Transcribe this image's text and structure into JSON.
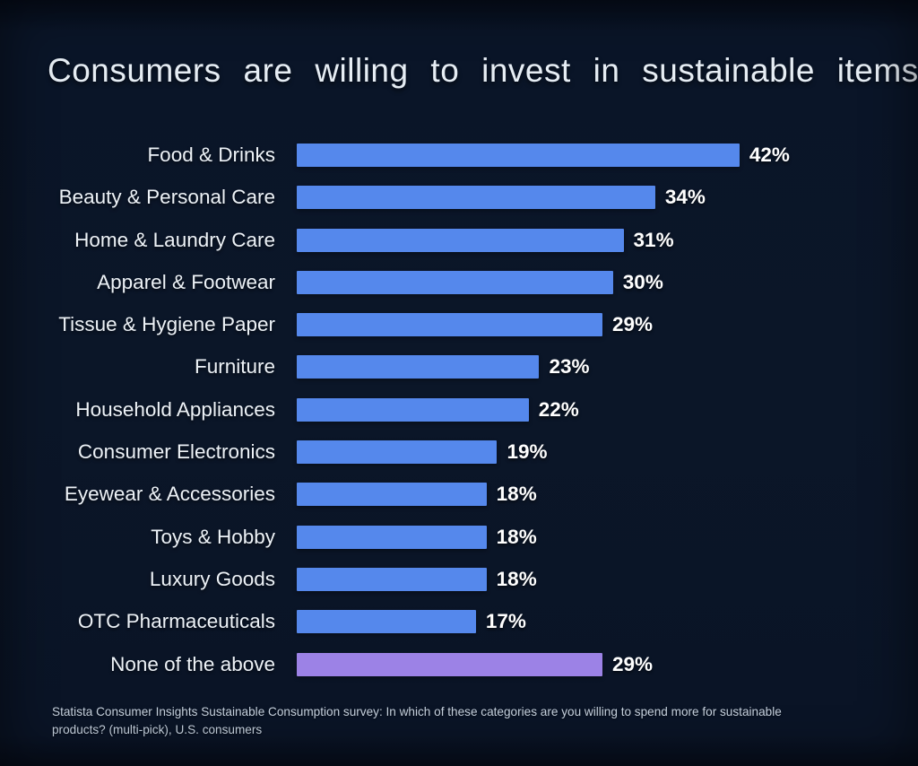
{
  "page": {
    "title": "Consumers are willing to invest in sustainable items"
  },
  "chart_data": {
    "type": "bar",
    "orientation": "horizontal",
    "title": "Consumers are willing to invest in sustainable items",
    "categories": [
      "Food & Drinks",
      "Beauty & Personal Care",
      "Home & Laundry Care",
      "Apparel & Footwear",
      "Tissue & Hygiene Paper",
      "Furniture",
      "Household Appliances",
      "Consumer Electronics",
      "Eyewear & Accessories",
      "Toys & Hobby",
      "Luxury Goods",
      "OTC Pharmaceuticals",
      "None of the above"
    ],
    "values": [
      42,
      34,
      31,
      30,
      29,
      23,
      22,
      19,
      18,
      18,
      18,
      17,
      29
    ],
    "value_suffix": "%",
    "xlim": [
      0,
      45
    ],
    "grid": false,
    "legend": "none",
    "bar_color": "#5588ec",
    "highlight_color": "#9c82e6",
    "highlight_index": 12,
    "xlabel": "",
    "ylabel": ""
  },
  "footer": {
    "source_note": "Statista Consumer Insights Sustainable Consumption survey: In which of these categories are you willing to spend more for sustainable products? (multi-pick), U.S. consumers"
  },
  "colors": {
    "background": "#0b1628",
    "bar": "#5588ec",
    "highlight_bar": "#9c82e6",
    "title_text": "#e6edf4",
    "label_text": "#edf2f7",
    "value_text": "#ffffff",
    "footer_text": "#c7d2df"
  }
}
